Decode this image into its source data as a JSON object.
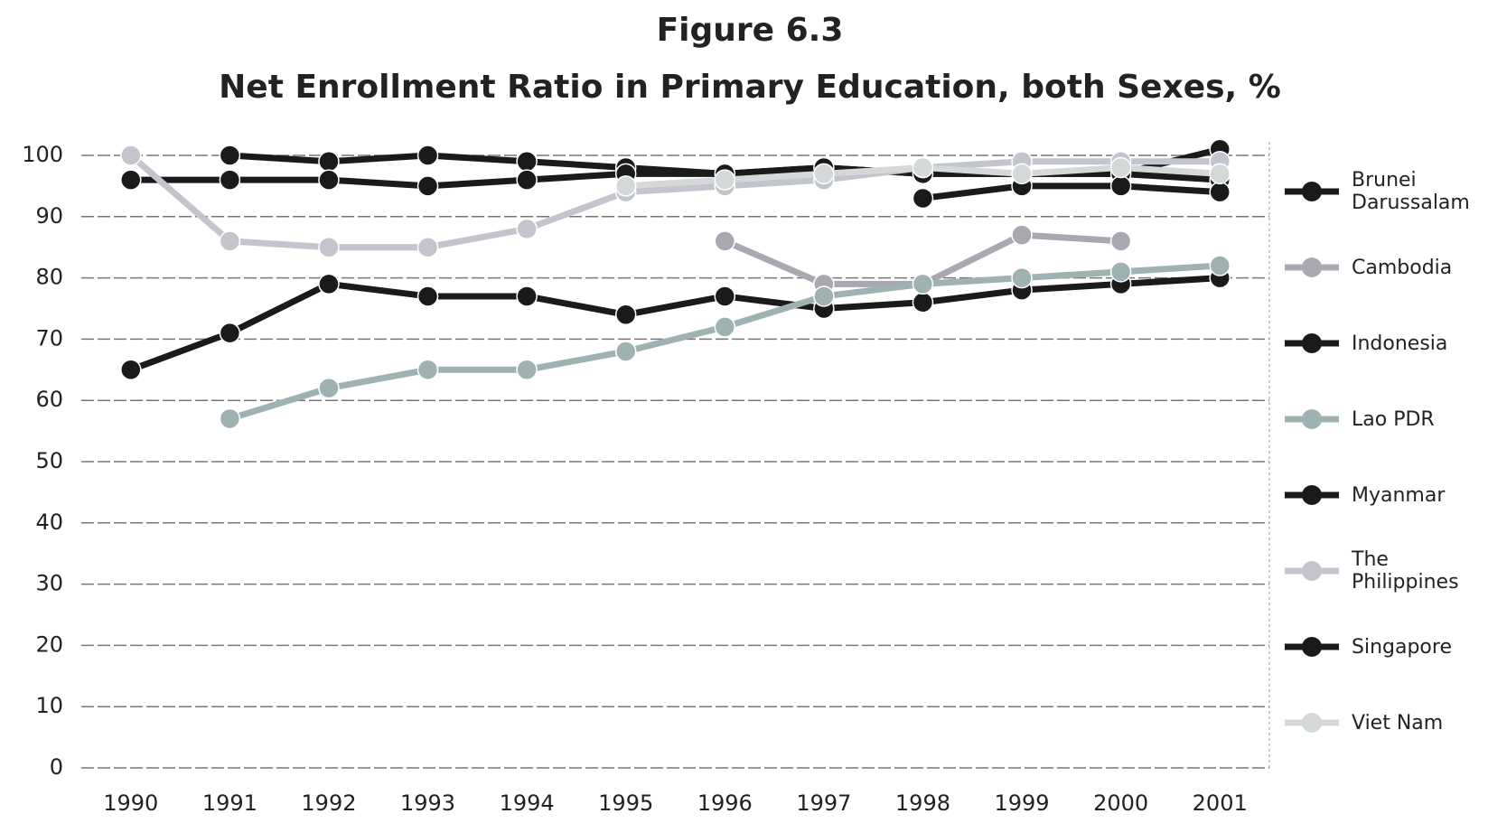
{
  "chart_data": {
    "type": "line",
    "title": "Figure 6.3",
    "subtitle": "Net Enrollment Ratio in Primary Education, both Sexes, %",
    "categories": [
      "1990",
      "1991",
      "1992",
      "1993",
      "1994",
      "1995",
      "1996",
      "1997",
      "1998",
      "1999",
      "2000",
      "2001"
    ],
    "series": [
      {
        "name": "Brunei Darussalam",
        "color": "#1a1a1a",
        "values": [
          null,
          100,
          99,
          100,
          99,
          98,
          97,
          98,
          97,
          97,
          97,
          101
        ]
      },
      {
        "name": "Cambodia",
        "color": "#a8a8b0",
        "values": [
          null,
          null,
          null,
          null,
          null,
          null,
          86,
          79,
          79,
          87,
          86,
          null
        ]
      },
      {
        "name": "Indonesia",
        "color": "#1a1a1a",
        "values": [
          65,
          71,
          79,
          77,
          77,
          74,
          77,
          75,
          76,
          78,
          79,
          80
        ]
      },
      {
        "name": "Lao PDR",
        "color": "#9fb2b2",
        "values": [
          null,
          57,
          62,
          65,
          65,
          68,
          72,
          77,
          79,
          80,
          81,
          82
        ]
      },
      {
        "name": "Myanmar",
        "color": "#1a1a1a",
        "values": [
          96,
          96,
          96,
          95,
          96,
          97,
          97,
          98,
          97,
          97,
          97,
          96
        ]
      },
      {
        "name": "The Philippines",
        "color": "#c4c4cc",
        "values": [
          100,
          86,
          85,
          85,
          88,
          94,
          95,
          96,
          98,
          99,
          99,
          99
        ]
      },
      {
        "name": "Singapore",
        "color": "#1a1a1a",
        "values": [
          null,
          null,
          null,
          null,
          null,
          null,
          null,
          null,
          93,
          95,
          95,
          94
        ]
      },
      {
        "name": "Viet Nam",
        "color": "#d4d8d8",
        "values": [
          null,
          null,
          null,
          null,
          null,
          95,
          96,
          97,
          98,
          97,
          98,
          97
        ]
      }
    ],
    "ylim": [
      0,
      100
    ],
    "yticks": [
      0,
      10,
      20,
      30,
      40,
      50,
      60,
      70,
      80,
      90,
      100
    ],
    "grid": true,
    "legend": "right"
  }
}
